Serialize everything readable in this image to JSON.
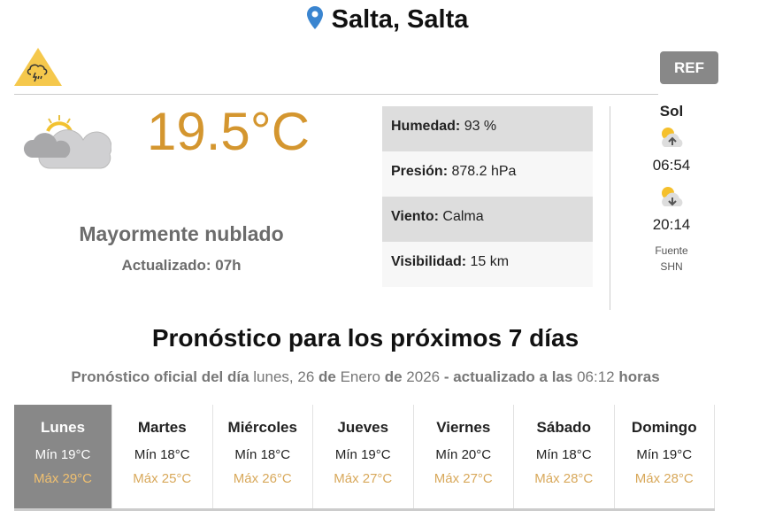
{
  "header": {
    "location": "Salta, Salta",
    "pin_icon": "map-pin-icon",
    "alert_icon": "storm-warning-icon",
    "alert_color": "#f5c84c",
    "ref_label": "REF"
  },
  "current": {
    "icon": "partly-cloudy-icon",
    "temperature": "19.5°C",
    "condition": "Mayormente nublado",
    "updated": "Actualizado: 07h"
  },
  "stats": [
    {
      "label": "Humedad:",
      "value": "93 %"
    },
    {
      "label": "Presión:",
      "value": "878.2 hPa"
    },
    {
      "label": "Viento:",
      "value": "Calma"
    },
    {
      "label": "Visibilidad:",
      "value": "15 km"
    }
  ],
  "sun": {
    "title": "Sol",
    "sunrise": "06:54",
    "sunset": "20:14",
    "source_line1": "Fuente",
    "source_line2": "SHN"
  },
  "forecast": {
    "title": "Pronóstico para los próximos 7 días",
    "sub": {
      "p1": "Pronóstico oficial del día",
      "day": "lunes, 26",
      "p2": "de",
      "month": "Enero",
      "p3": "de",
      "year": "2026",
      "p4": "- actualizado a las",
      "time": "06:12",
      "p5": "horas"
    },
    "days": [
      {
        "name": "Lunes",
        "min": "Mín 19°C",
        "max": "Máx 29°C"
      },
      {
        "name": "Martes",
        "min": "Mín 18°C",
        "max": "Máx 25°C"
      },
      {
        "name": "Miércoles",
        "min": "Mín 18°C",
        "max": "Máx 26°C"
      },
      {
        "name": "Jueves",
        "min": "Mín 19°C",
        "max": "Máx 27°C"
      },
      {
        "name": "Viernes",
        "min": "Mín 20°C",
        "max": "Máx 27°C"
      },
      {
        "name": "Sábado",
        "min": "Mín 18°C",
        "max": "Máx 28°C"
      },
      {
        "name": "Domingo",
        "min": "Mín 19°C",
        "max": "Máx 28°C"
      }
    ]
  },
  "colors": {
    "temperature": "#d4962f",
    "max": "#d8a85a",
    "selected_day": "#888888"
  }
}
